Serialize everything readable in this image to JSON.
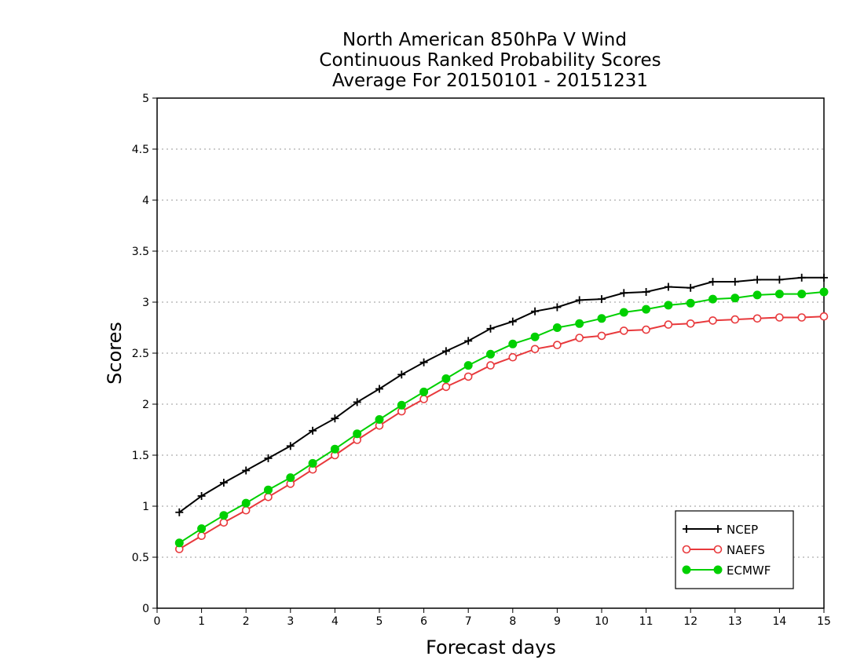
{
  "chart_data": {
    "type": "line",
    "title": [
      "North American 850hPa V Wind",
      "Continuous Ranked Probability Scores",
      "Average For 20150101 - 20151231"
    ],
    "xlabel": "Forecast days",
    "ylabel": "Scores",
    "xlim": [
      0,
      15
    ],
    "ylim": [
      0,
      5
    ],
    "xticks": [
      "0",
      "1",
      "2",
      "3",
      "4",
      "5",
      "6",
      "7",
      "8",
      "9",
      "10",
      "11",
      "12",
      "13",
      "14",
      "15"
    ],
    "yticks": [
      "0",
      "0.5",
      "1",
      "1.5",
      "2",
      "2.5",
      "3",
      "3.5",
      "4",
      "4.5",
      "5"
    ],
    "grid": "horizontal dotted",
    "legend_position": "bottom-right",
    "x": [
      0.5,
      1,
      1.5,
      2,
      2.5,
      3,
      3.5,
      4,
      4.5,
      5,
      5.5,
      6,
      6.5,
      7,
      7.5,
      8,
      8.5,
      9,
      9.5,
      10,
      10.5,
      11,
      11.5,
      12,
      12.5,
      13,
      13.5,
      14,
      14.5,
      15
    ],
    "series": [
      {
        "name": "NCEP",
        "color": "#000000",
        "marker": "plus",
        "values": [
          0.94,
          1.1,
          1.23,
          1.35,
          1.47,
          1.59,
          1.74,
          1.86,
          2.02,
          2.15,
          2.29,
          2.41,
          2.52,
          2.62,
          2.74,
          2.81,
          2.91,
          2.95,
          3.02,
          3.03,
          3.09,
          3.1,
          3.15,
          3.14,
          3.2,
          3.2,
          3.22,
          3.22,
          3.24,
          3.24
        ]
      },
      {
        "name": "NAEFS",
        "color": "#e8393c",
        "marker": "open-circle",
        "values": [
          0.58,
          0.71,
          0.84,
          0.96,
          1.09,
          1.22,
          1.36,
          1.5,
          1.65,
          1.79,
          1.93,
          2.05,
          2.17,
          2.27,
          2.38,
          2.46,
          2.54,
          2.58,
          2.65,
          2.67,
          2.72,
          2.73,
          2.78,
          2.79,
          2.82,
          2.83,
          2.84,
          2.85,
          2.85,
          2.86
        ]
      },
      {
        "name": "ECMWF",
        "color": "#00d000",
        "marker": "filled-circle",
        "values": [
          0.64,
          0.78,
          0.91,
          1.03,
          1.16,
          1.28,
          1.42,
          1.56,
          1.71,
          1.85,
          1.99,
          2.12,
          2.25,
          2.38,
          2.49,
          2.59,
          2.66,
          2.75,
          2.79,
          2.84,
          2.9,
          2.93,
          2.97,
          2.99,
          3.03,
          3.04,
          3.07,
          3.08,
          3.08,
          3.1
        ]
      }
    ]
  }
}
